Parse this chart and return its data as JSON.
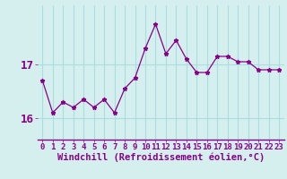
{
  "hours": [
    0,
    1,
    2,
    3,
    4,
    5,
    6,
    7,
    8,
    9,
    10,
    11,
    12,
    13,
    14,
    15,
    16,
    17,
    18,
    19,
    20,
    21,
    22,
    23
  ],
  "values": [
    16.7,
    16.1,
    16.3,
    16.2,
    16.35,
    16.2,
    16.35,
    16.1,
    16.55,
    16.75,
    17.3,
    17.75,
    17.2,
    17.45,
    17.1,
    16.85,
    16.85,
    17.15,
    17.15,
    17.05,
    17.05,
    16.9,
    16.9,
    16.9
  ],
  "line_color": "#880088",
  "marker": "*",
  "bg_color": "#d5eeee",
  "grid_color": "#aadddd",
  "xlabel": "Windchill (Refroidissement éolien,°C)",
  "ylabel_ticks": [
    16,
    17
  ],
  "ylim": [
    15.6,
    18.1
  ],
  "xlim": [
    -0.5,
    23.5
  ],
  "tick_color": "#880088",
  "label_color": "#880088",
  "tick_fontsize": 6.5,
  "xlabel_fontsize": 7.5,
  "ytick_fontsize": 9
}
